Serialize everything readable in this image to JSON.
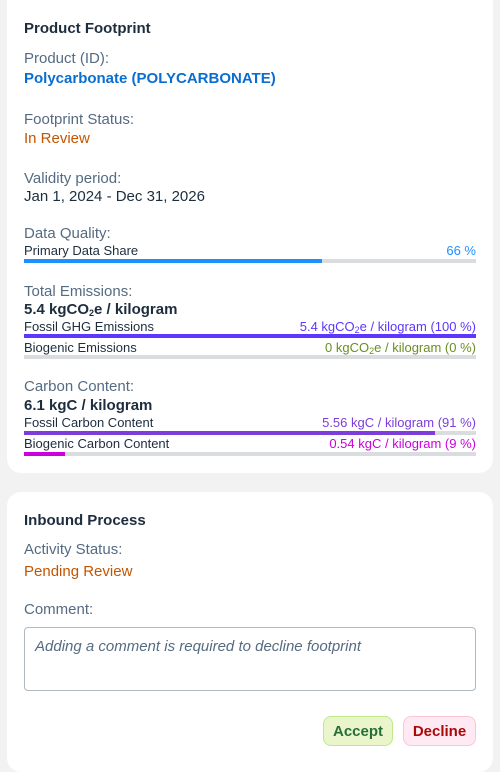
{
  "footprint": {
    "title": "Product Footprint",
    "product_label": "Product (ID):",
    "product_value": "Polycarbonate (POLYCARBONATE)",
    "status_label": "Footprint Status:",
    "status_value": "In Review",
    "validity_label": "Validity period:",
    "validity_value": "Jan 1, 2024 - Dec 31, 2026",
    "quality_label": "Data Quality:",
    "primary_share_label": "Primary Data Share",
    "primary_share_value": "66 %",
    "primary_share_fraction": 0.66,
    "emissions_label": "Total Emissions:",
    "emissions_total": {
      "pre": "5.4 kgCO",
      "sub": "2",
      "post": "e / kilogram"
    },
    "fossil_label": "Fossil GHG Emissions",
    "fossil_value": {
      "pre": "5.4 kgCO",
      "sub": "2",
      "post": "e / kilogram (100 %)"
    },
    "fossil_fraction": 1.0,
    "biogenic_label": "Biogenic Emissions",
    "biogenic_value": {
      "pre": "0 kgCO",
      "sub": "2",
      "post": "e / kilogram (0 %)"
    },
    "biogenic_fraction": 0.0,
    "carbon_label": "Carbon Content:",
    "carbon_total": "6.1 kgC / kilogram",
    "fossil_carbon_label": "Fossil Carbon Content",
    "fossil_carbon_value": "5.56 kgC / kilogram (91 %)",
    "fossil_carbon_fraction": 0.91,
    "biogenic_carbon_label": "Biogenic Carbon Content",
    "biogenic_carbon_value": "0.54 kgC / kilogram (9 %)",
    "biogenic_carbon_fraction": 0.09
  },
  "inbound": {
    "title": "Inbound Process",
    "activity_label": "Activity Status:",
    "activity_value": "Pending Review",
    "comment_label": "Comment:",
    "comment_placeholder": "Adding a comment is required to decline footprint",
    "accept_label": "Accept",
    "decline_label": "Decline"
  },
  "colors": {
    "primary_share": "#1b90ff",
    "fossil_emissions": "#5d36ff",
    "biogenic_emissions": "#6b8e23",
    "fossil_carbon": "#7c3ddb",
    "biogenic_carbon": "#cc00dc",
    "status_orange": "#c35500",
    "link_blue": "#0a6ed1"
  }
}
